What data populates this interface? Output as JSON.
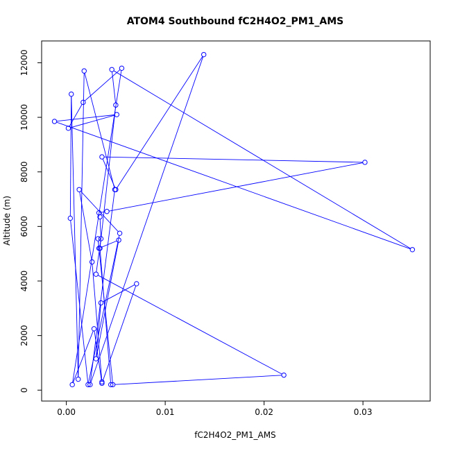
{
  "chart_data": {
    "type": "line",
    "title": "ATOM4 Southbound fC2H4O2_PM1_AMS",
    "xlabel": "fC2H4O2_PM1_AMS",
    "ylabel": "Altitude (m)",
    "xlim": [
      -0.0025,
      0.0368
    ],
    "ylim": [
      -400,
      12800
    ],
    "xticks": [
      0.0,
      0.01,
      0.02,
      0.03
    ],
    "xtick_labels": [
      "0.00",
      "0.01",
      "0.02",
      "0.03"
    ],
    "yticks": [
      0,
      2000,
      4000,
      6000,
      8000,
      10000,
      12000
    ],
    "ytick_labels": [
      "0",
      "2000",
      "4000",
      "6000",
      "8000",
      "10000",
      "12000"
    ],
    "grid": false,
    "series": [
      {
        "color": "#0000ff",
        "marker": "open-circle",
        "x": [
          0.0036,
          0.0026,
          0.0013,
          0.0054,
          0.0022,
          0.0004,
          0.0005,
          0.0012,
          0.0018,
          0.0049,
          0.0024,
          0.0139,
          0.005,
          0.0036,
          0.0302,
          0.0041,
          0.0033,
          0.0034,
          0.0035,
          0.003,
          0.022,
          0.0047,
          0.0032,
          0.0033,
          0.0053,
          0.003,
          0.0035,
          0.0071,
          0.0036,
          0.0028,
          0.0006,
          0.0056,
          0.0017,
          0.0002,
          0.0051,
          -0.0012,
          0.035,
          0.0046,
          0.005,
          0.0034,
          0.0045
        ],
        "y": [
          300,
          4700,
          7350,
          5750,
          200,
          6300,
          10850,
          400,
          11700,
          7350,
          200,
          12300,
          7350,
          8550,
          8350,
          6550,
          6500,
          6350,
          5550,
          4250,
          550,
          200,
          5550,
          5200,
          5500,
          1150,
          3200,
          3900,
          250,
          2250,
          200,
          11800,
          10550,
          9600,
          10100,
          9850,
          5150,
          11750,
          10450,
          5200,
          200
        ]
      }
    ]
  }
}
